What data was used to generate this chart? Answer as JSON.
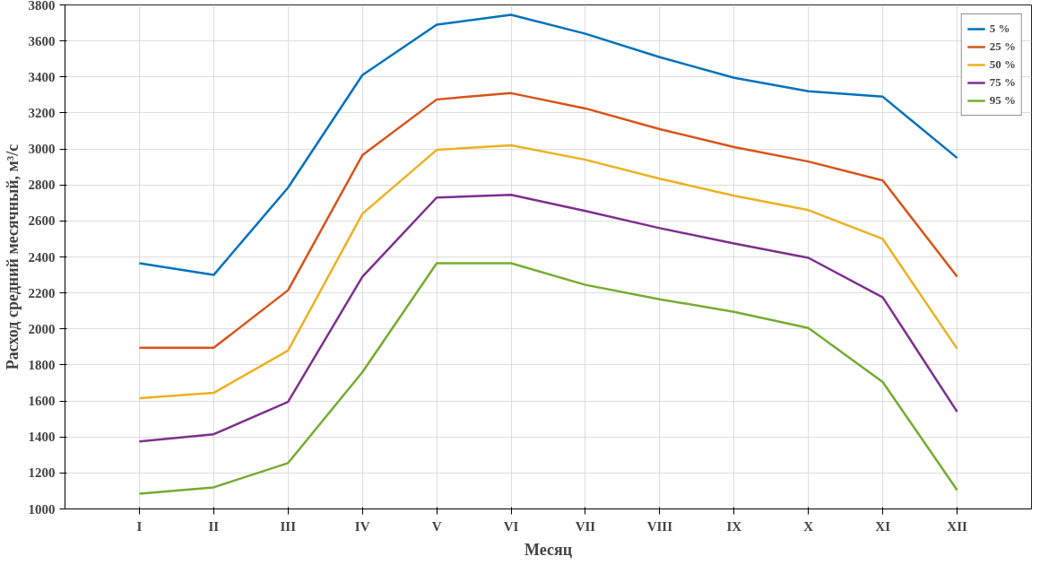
{
  "chart_data": {
    "type": "line",
    "xlabel": "Месяц",
    "ylabel": "Расход средний месячный, м³/с",
    "categories": [
      "I",
      "II",
      "III",
      "IV",
      "V",
      "VI",
      "VII",
      "VIII",
      "IX",
      "X",
      "XI",
      "XII"
    ],
    "ylim": [
      1000,
      3800
    ],
    "yticks": [
      1000,
      1200,
      1400,
      1600,
      1800,
      2000,
      2200,
      2400,
      2600,
      2800,
      3000,
      3200,
      3400,
      3600,
      3800
    ],
    "grid": true,
    "legend": "top right",
    "line_style": "solid",
    "series": [
      {
        "name": "5 %",
        "color": "#0072bd",
        "values": [
          2365,
          2300,
          2785,
          3410,
          3690,
          3745,
          3640,
          3510,
          3395,
          3320,
          3290,
          2950
        ]
      },
      {
        "name": "25 %",
        "color": "#d95319",
        "values": [
          1895,
          1895,
          2215,
          2965,
          3275,
          3310,
          3225,
          3110,
          3010,
          2930,
          2825,
          2290
        ]
      },
      {
        "name": "50 %",
        "color": "#edb120",
        "values": [
          1615,
          1645,
          1880,
          2640,
          2995,
          3020,
          2940,
          2835,
          2740,
          2660,
          2500,
          1890
        ]
      },
      {
        "name": "75 %",
        "color": "#7e2f8e",
        "values": [
          1375,
          1415,
          1595,
          2290,
          2730,
          2745,
          2655,
          2560,
          2475,
          2395,
          2175,
          1540
        ]
      },
      {
        "name": "95 %",
        "color": "#77ac30",
        "values": [
          1085,
          1120,
          1255,
          1760,
          2365,
          2365,
          2245,
          2165,
          2095,
          2005,
          1705,
          1105
        ]
      }
    ]
  }
}
